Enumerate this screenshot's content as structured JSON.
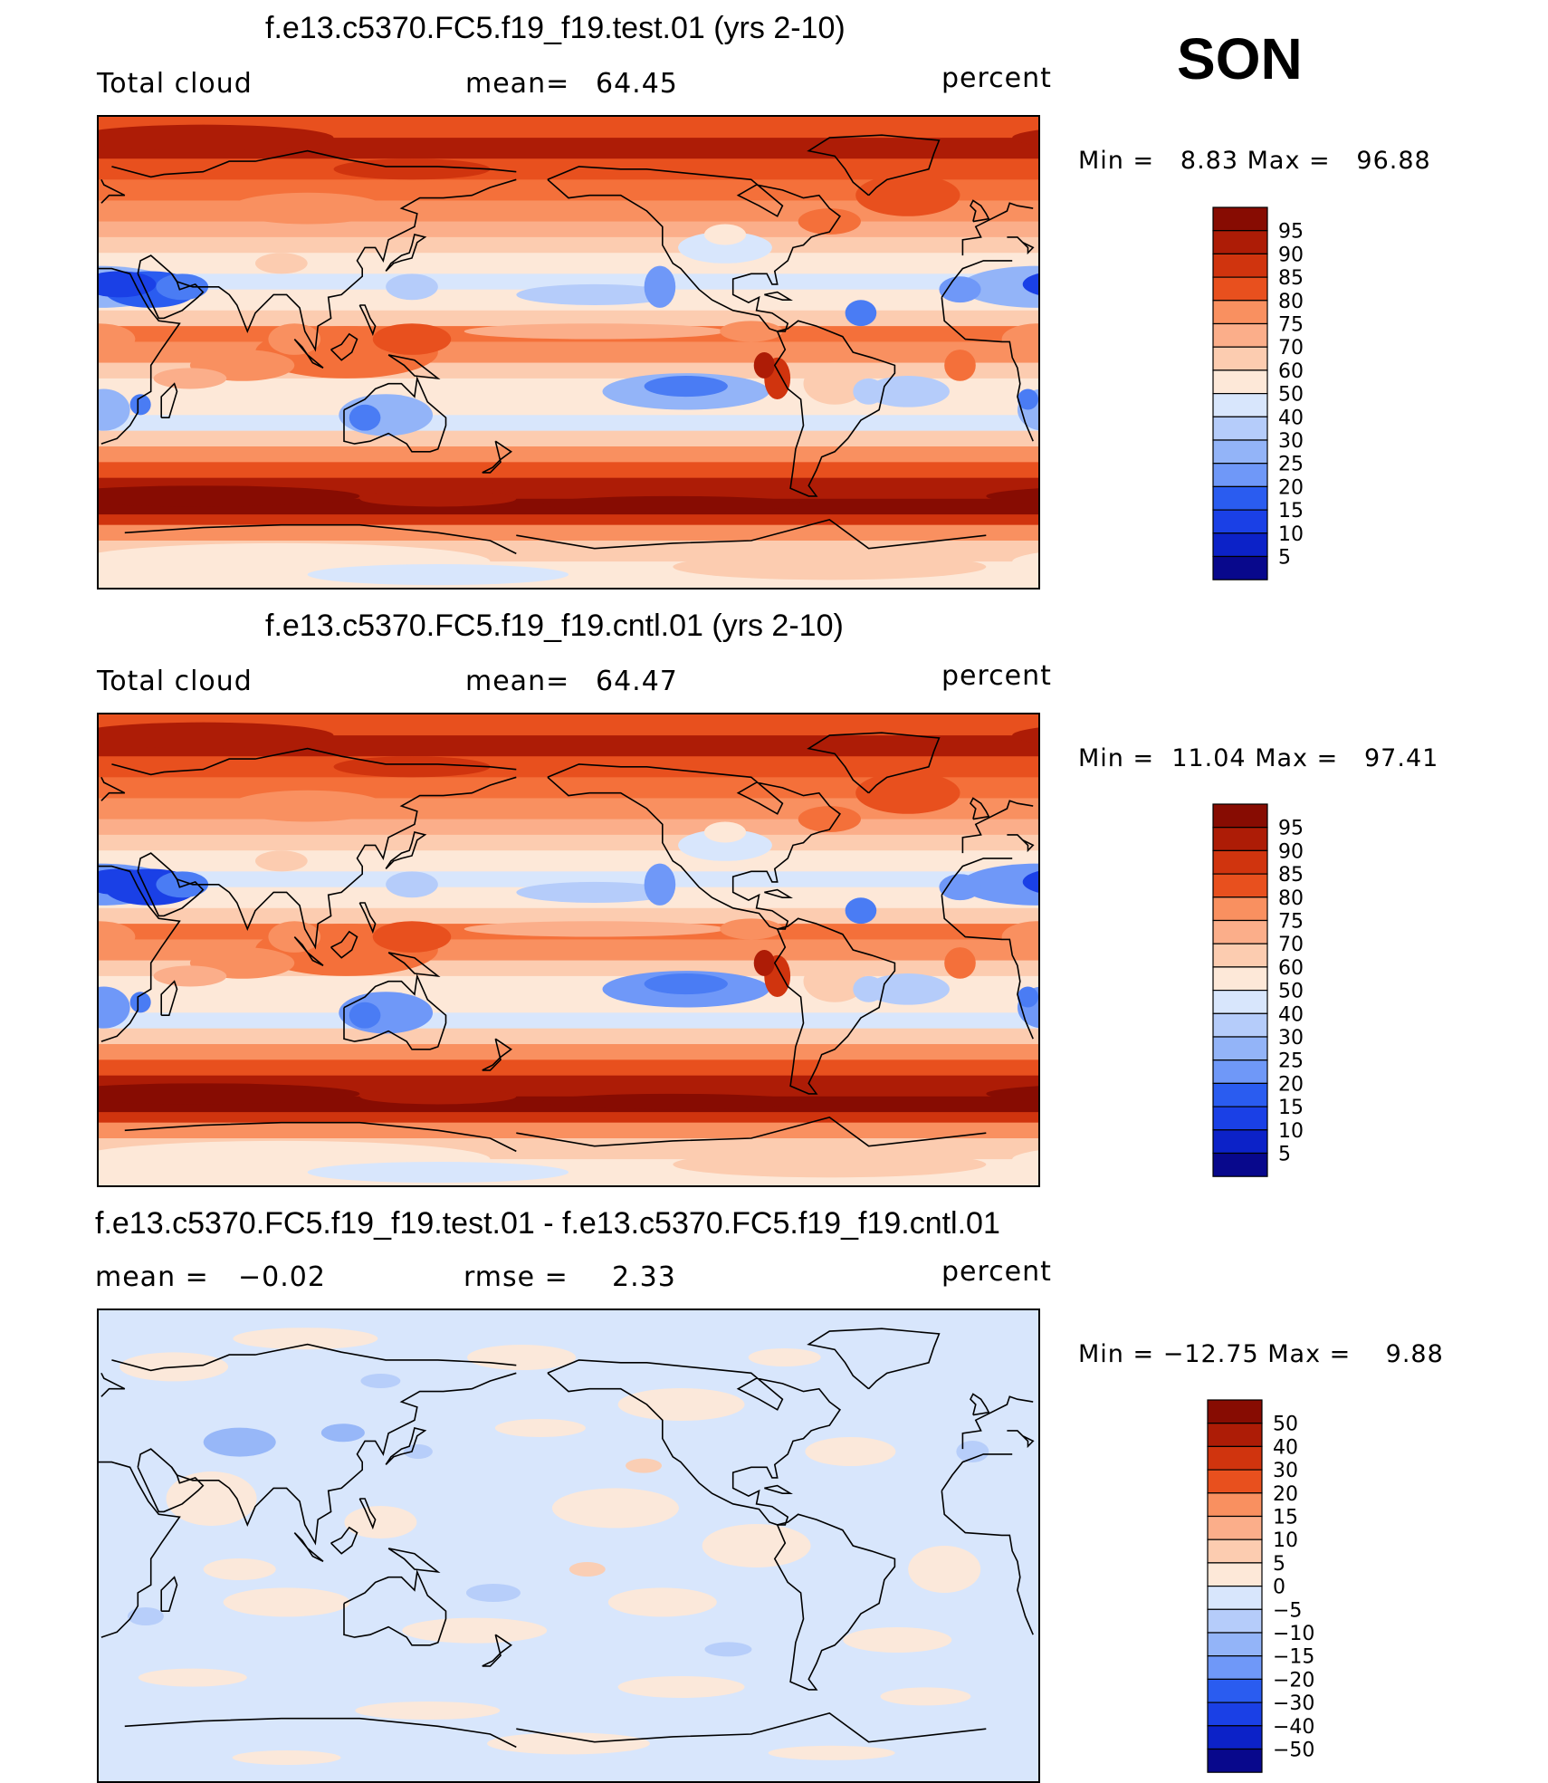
{
  "season": "SON",
  "palettes": {
    "fields": [
      "#08088c",
      "#0c22c8",
      "#1a40e6",
      "#2a5cf0",
      "#4a7cf4",
      "#6f98f8",
      "#93b4f8",
      "#b5ccfa",
      "#d8e6fc",
      "#fde8d8",
      "#fcccb0",
      "#fbae8a",
      "#f99060",
      "#f4703a",
      "#e8501e",
      "#d0340e",
      "#ad1c06",
      "#870c02"
    ],
    "diff": [
      "#08088c",
      "#0c22c8",
      "#1a40e6",
      "#2a5cf0",
      "#4a7cf4",
      "#6f98f8",
      "#93b4f8",
      "#b5ccfa",
      "#d8e6fc",
      "#fde8d8",
      "#fcccb0",
      "#fbae8a",
      "#f99060",
      "#f4703a",
      "#e8501e",
      "#d0340e",
      "#ad1c06",
      "#870c02"
    ]
  },
  "panels": [
    {
      "title": "f.e13.c5370.FC5.f19_f19.test.01 (yrs 2-10)",
      "left_label": "Total cloud",
      "stat_label": "mean=",
      "stat_value": "64.45",
      "units": "percent",
      "min_label": "Min",
      "eq": "=",
      "min_value": "8.83",
      "max_label": "Max",
      "max_value": "96.88",
      "levels": [
        "95",
        "90",
        "85",
        "80",
        "75",
        "70",
        "60",
        "50",
        "40",
        "30",
        "25",
        "20",
        "15",
        "10",
        "5"
      ]
    },
    {
      "title": "f.e13.c5370.FC5.f19_f19.cntl.01 (yrs 2-10)",
      "left_label": "Total cloud",
      "stat_label": "mean=",
      "stat_value": "64.47",
      "units": "percent",
      "min_label": "Min",
      "eq": "=",
      "min_value": "11.04",
      "max_label": "Max",
      "max_value": "97.41",
      "levels": [
        "95",
        "90",
        "85",
        "80",
        "75",
        "70",
        "60",
        "50",
        "40",
        "30",
        "25",
        "20",
        "15",
        "10",
        "5"
      ]
    },
    {
      "title": "f.e13.c5370.FC5.f19_f19.test.01 - f.e13.c5370.FC5.f19_f19.cntl.01",
      "left_label": "mean  =",
      "left_value": "−0.02",
      "stat_label": "rmse  =",
      "stat_value": "2.33",
      "units": "percent",
      "min_label": "Min",
      "eq": "=",
      "min_value": "−12.75",
      "max_label": "Max",
      "max_value": "9.88",
      "levels": [
        "50",
        "40",
        "30",
        "20",
        "15",
        "10",
        "5",
        "0",
        "−5",
        "−10",
        "−15",
        "−20",
        "−30",
        "−40",
        "−50"
      ]
    }
  ]
}
